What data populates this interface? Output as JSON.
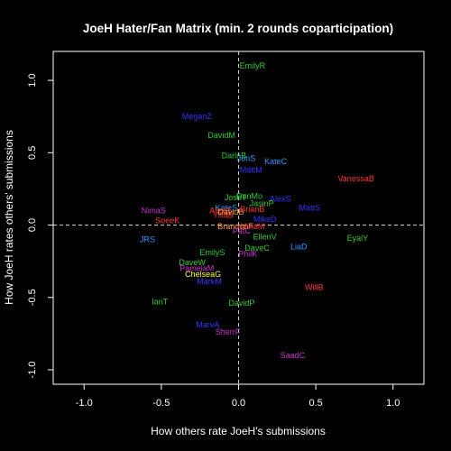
{
  "chart_data": {
    "type": "scatter",
    "title": "JoeH Hater/Fan Matrix (min. 2 rounds coparticipation)",
    "xlabel": "How others rate JoeH's submissions",
    "ylabel": "How JoeH rates others' submissions",
    "xlim": [
      -1.2,
      1.2
    ],
    "ylim": [
      -1.1,
      1.2
    ],
    "xticks": [
      -1.0,
      -0.5,
      0.0,
      0.5,
      1.0
    ],
    "yticks": [
      -1.0,
      -0.5,
      0.0,
      0.5,
      1.0
    ],
    "xtick_labels": [
      "-1.0",
      "-0.5",
      "0.0",
      "0.5",
      "1.0"
    ],
    "ytick_labels": [
      "-1.0",
      "-0.5",
      "0.0",
      "0.5",
      "1.0"
    ],
    "reference_lines": {
      "x": 0,
      "y": 0,
      "style": "dashed"
    },
    "points": [
      {
        "label": "EmilyR",
        "x": 0.09,
        "y": 1.1,
        "color": "#33cc33"
      },
      {
        "label": "MeganZ",
        "x": -0.27,
        "y": 0.75,
        "color": "#3333ff"
      },
      {
        "label": "DavidM",
        "x": -0.11,
        "y": 0.62,
        "color": "#33cc33"
      },
      {
        "label": "DarinB",
        "x": -0.03,
        "y": 0.48,
        "color": "#33cc33"
      },
      {
        "label": "JonS",
        "x": 0.05,
        "y": 0.46,
        "color": "#3399ff"
      },
      {
        "label": "KateC",
        "x": 0.24,
        "y": 0.44,
        "color": "#3399ff"
      },
      {
        "label": "MattM",
        "x": 0.08,
        "y": 0.38,
        "color": "#3333ff"
      },
      {
        "label": "VanessaB",
        "x": 0.76,
        "y": 0.32,
        "color": "#ff3333"
      },
      {
        "label": "DanMo",
        "x": 0.07,
        "y": 0.2,
        "color": "#33cc33"
      },
      {
        "label": "JoshT",
        "x": -0.02,
        "y": 0.19,
        "color": "#33cc33"
      },
      {
        "label": "AlexS",
        "x": 0.27,
        "y": 0.18,
        "color": "#3333ff"
      },
      {
        "label": "JasinP",
        "x": 0.15,
        "y": 0.15,
        "color": "#33cc33"
      },
      {
        "label": "KateS",
        "x": -0.08,
        "y": 0.12,
        "color": "#3399ff"
      },
      {
        "label": "MattS",
        "x": 0.46,
        "y": 0.12,
        "color": "#3333ff"
      },
      {
        "label": "NimaS",
        "x": -0.55,
        "y": 0.1,
        "color": "#cc33cc"
      },
      {
        "label": "AlexB",
        "x": -0.12,
        "y": 0.1,
        "color": "#ff3333"
      },
      {
        "label": "YiliaB",
        "x": -0.1,
        "y": 0.07,
        "color": "#ff3333"
      },
      {
        "label": "DavidB",
        "x": -0.05,
        "y": 0.09,
        "color": "#ff9933"
      },
      {
        "label": "BrianB",
        "x": 0.09,
        "y": 0.11,
        "color": "#ff3333"
      },
      {
        "label": "MikeD",
        "x": 0.17,
        "y": 0.04,
        "color": "#3333ff"
      },
      {
        "label": "SoeeK",
        "x": -0.46,
        "y": 0.03,
        "color": "#ff3333"
      },
      {
        "label": "BrandonF",
        "x": -0.02,
        "y": -0.01,
        "color": "#ff9933"
      },
      {
        "label": "MinaM",
        "x": 0.09,
        "y": -0.01,
        "color": "#ff3333"
      },
      {
        "label": "PatC",
        "x": 0.02,
        "y": -0.04,
        "color": "#cc33cc"
      },
      {
        "label": "EllenV",
        "x": 0.17,
        "y": -0.08,
        "color": "#33cc33"
      },
      {
        "label": "JRS",
        "x": -0.59,
        "y": -0.1,
        "color": "#3399ff"
      },
      {
        "label": "EyalY",
        "x": 0.77,
        "y": -0.09,
        "color": "#33cc33"
      },
      {
        "label": "DaveC",
        "x": 0.12,
        "y": -0.16,
        "color": "#33cc33"
      },
      {
        "label": "LiaD",
        "x": 0.39,
        "y": -0.15,
        "color": "#3399ff"
      },
      {
        "label": "EmilyS",
        "x": -0.17,
        "y": -0.19,
        "color": "#33cc33"
      },
      {
        "label": "PhilK",
        "x": 0.06,
        "y": -0.2,
        "color": "#cc33cc"
      },
      {
        "label": "DaveW",
        "x": -0.3,
        "y": -0.26,
        "color": "#33cc33"
      },
      {
        "label": "PamelaM",
        "x": -0.27,
        "y": -0.3,
        "color": "#cc33cc"
      },
      {
        "label": "ChelseaG",
        "x": -0.23,
        "y": -0.34,
        "color": "#ffff33"
      },
      {
        "label": "MarkM",
        "x": -0.19,
        "y": -0.39,
        "color": "#3333ff"
      },
      {
        "label": "WillB",
        "x": 0.49,
        "y": -0.43,
        "color": "#ff3333"
      },
      {
        "label": "IanT",
        "x": -0.51,
        "y": -0.53,
        "color": "#33cc33"
      },
      {
        "label": "DavidP",
        "x": 0.02,
        "y": -0.54,
        "color": "#33cc33"
      },
      {
        "label": "MarvA",
        "x": -0.2,
        "y": -0.69,
        "color": "#3333ff"
      },
      {
        "label": "SherrF",
        "x": -0.07,
        "y": -0.74,
        "color": "#cc33cc"
      },
      {
        "label": "SaadC",
        "x": 0.35,
        "y": -0.9,
        "color": "#cc33cc"
      }
    ]
  }
}
